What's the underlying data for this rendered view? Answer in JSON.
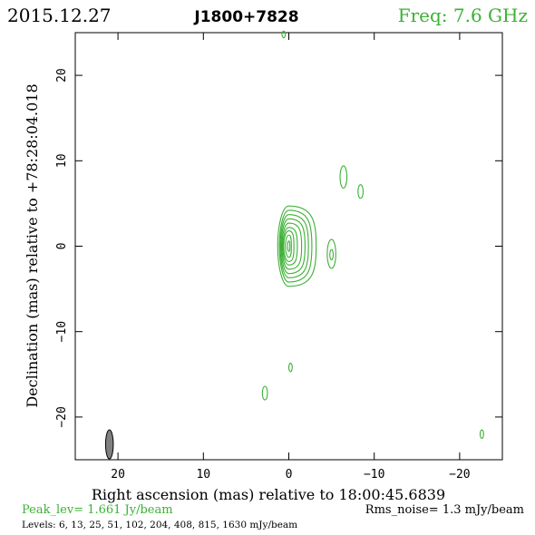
{
  "header": {
    "date": "2015.12.27",
    "source": "J1800+7828",
    "freq": "Freq: 7.6 GHz"
  },
  "footer": {
    "peak": "Peak_lev=  1.661 Jy/beam",
    "rms": "Rms_noise=  1.3 mJy/beam",
    "levels": "Levels:   6,  13,  25,  51, 102, 204, 408, 815, 1630 mJy/beam"
  },
  "colors": {
    "contour": "#3cb034",
    "axes": "#000000",
    "beam_fill": "#808080"
  },
  "chart_data": {
    "type": "contour",
    "xlabel": "Right ascension (mas) relative to 18:00:45.6839",
    "ylabel": "Declination (mas) relative to +78:28:04.018",
    "xlim": [
      25,
      -25
    ],
    "ylim": [
      -25,
      25
    ],
    "xticks": [
      20,
      10,
      0,
      -10,
      -20
    ],
    "xtick_labels": [
      "20",
      "10",
      "0",
      "−10",
      "−20"
    ],
    "yticks": [
      -20,
      -10,
      0,
      10,
      20
    ],
    "ytick_labels": [
      "−20",
      "−10",
      "0",
      "10",
      "20"
    ],
    "core": {
      "x": 0.0,
      "y": 0.0,
      "contours": [
        {
          "level": 6,
          "x0": -3.2,
          "x1": 1.3,
          "ry": 4.7
        },
        {
          "level": 13,
          "x0": -2.7,
          "x1": 1.1,
          "ry": 4.2
        },
        {
          "level": 25,
          "x0": -2.3,
          "x1": 1.0,
          "ry": 3.7
        },
        {
          "level": 51,
          "x0": -1.9,
          "x1": 0.9,
          "ry": 3.2
        },
        {
          "level": 102,
          "x0": -1.5,
          "x1": 0.8,
          "ry": 2.7
        },
        {
          "level": 204,
          "x0": -1.0,
          "x1": 0.7,
          "ry": 2.2
        },
        {
          "level": 408,
          "x0": -0.6,
          "x1": 0.6,
          "ry": 1.8
        },
        {
          "level": 815,
          "x0": -0.3,
          "x1": 0.4,
          "ry": 1.3
        },
        {
          "level": 1630,
          "x0": -0.1,
          "x1": 0.15,
          "ry": 0.6
        }
      ]
    },
    "components": [
      {
        "x": -5.0,
        "y": -0.9,
        "rx": 0.5,
        "ry": 1.7
      },
      {
        "x": -5.0,
        "y": -1.0,
        "rx": 0.2,
        "ry": 0.6
      },
      {
        "x": -6.4,
        "y": 8.1,
        "rx": 0.4,
        "ry": 1.3
      },
      {
        "x": -8.4,
        "y": 6.4,
        "rx": 0.3,
        "ry": 0.8
      },
      {
        "x": 2.8,
        "y": -17.2,
        "rx": 0.3,
        "ry": 0.8
      },
      {
        "x": -0.2,
        "y": -14.2,
        "rx": 0.2,
        "ry": 0.5
      },
      {
        "x": 0.6,
        "y": 24.8,
        "rx": 0.2,
        "ry": 0.4
      },
      {
        "x": -22.6,
        "y": -22.0,
        "rx": 0.2,
        "ry": 0.5
      }
    ],
    "beam": {
      "x": 21.0,
      "y": -23.2,
      "major": 3.4,
      "minor": 0.9,
      "pa": 0
    }
  }
}
